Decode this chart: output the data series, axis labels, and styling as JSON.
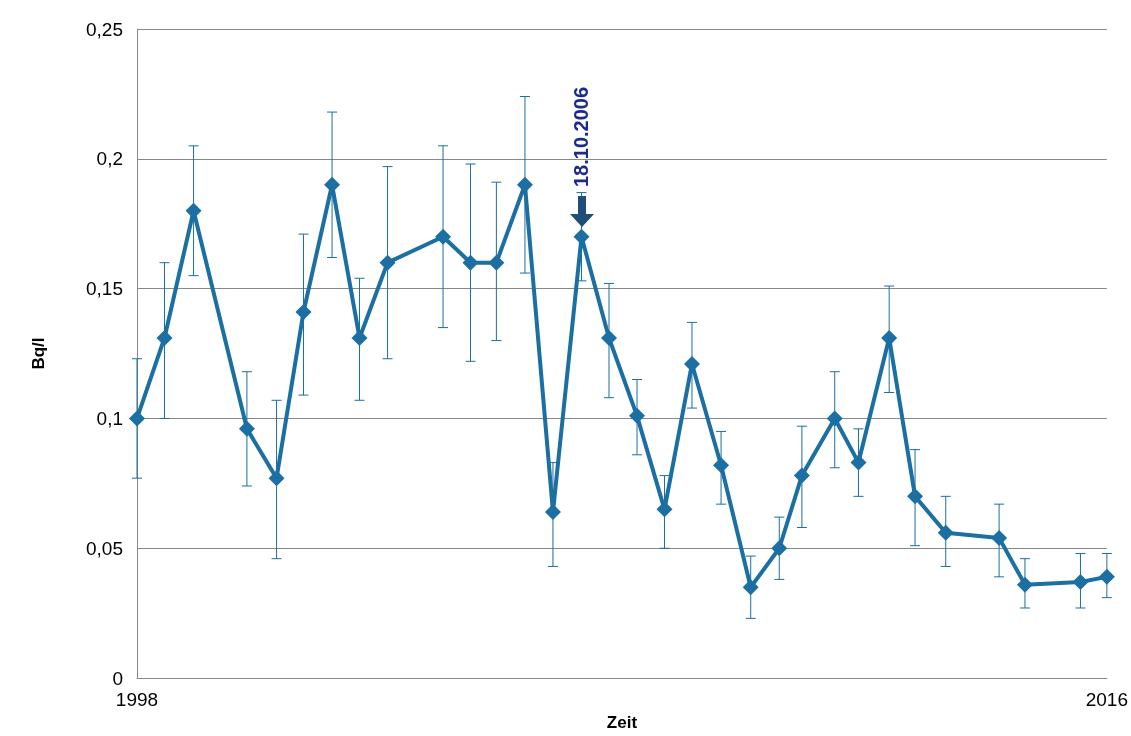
{
  "chart_data": {
    "type": "line",
    "xlabel": "Zeit",
    "ylabel": "Bq/l",
    "x": [
      1998.0,
      1998.51,
      1999.05,
      2000.04,
      2000.59,
      2001.09,
      2001.62,
      2002.13,
      2002.65,
      2003.68,
      2004.19,
      2004.67,
      2005.2,
      2005.72,
      2006.25,
      2006.76,
      2007.28,
      2007.79,
      2008.3,
      2008.84,
      2009.39,
      2009.92,
      2010.34,
      2010.95,
      2011.39,
      2011.96,
      2012.44,
      2013.01,
      2014.0,
      2014.48,
      2015.51,
      2016.0
    ],
    "series": [
      {
        "color": "#1b6fa2",
        "values": [
          0.1,
          0.131,
          0.18,
          0.096,
          0.077,
          0.141,
          0.19,
          0.131,
          0.16,
          0.17,
          0.16,
          0.16,
          0.19,
          0.064,
          0.17,
          0.131,
          0.101,
          0.065,
          0.121,
          0.082,
          0.035,
          0.05,
          0.078,
          0.1,
          0.083,
          0.131,
          0.07,
          0.056,
          0.054,
          0.036,
          0.037,
          0.039
        ],
        "errors": [
          [
            0.077,
            0.123
          ],
          [
            0.1,
            0.16
          ],
          [
            0.155,
            0.205
          ],
          [
            0.074,
            0.118
          ],
          [
            0.046,
            0.107
          ],
          [
            0.109,
            0.171
          ],
          [
            0.162,
            0.218
          ],
          [
            0.107,
            0.154
          ],
          [
            0.123,
            0.197
          ],
          [
            0.135,
            0.205
          ],
          [
            0.122,
            0.198
          ],
          [
            0.13,
            0.191
          ],
          [
            0.156,
            0.224
          ],
          [
            0.043,
            0.083
          ],
          [
            0.153,
            0.187
          ],
          [
            0.108,
            0.152
          ],
          [
            0.086,
            0.115
          ],
          [
            0.05,
            0.078
          ],
          [
            0.104,
            0.137
          ],
          [
            0.067,
            0.095
          ],
          [
            0.023,
            0.047
          ],
          [
            0.038,
            0.062
          ],
          [
            0.058,
            0.097
          ],
          [
            0.081,
            0.118
          ],
          [
            0.07,
            0.096
          ],
          [
            0.11,
            0.151
          ],
          [
            0.051,
            0.088
          ],
          [
            0.043,
            0.07
          ],
          [
            0.039,
            0.067
          ],
          [
            0.027,
            0.046
          ],
          [
            0.027,
            0.048
          ],
          [
            0.031,
            0.048
          ]
        ]
      }
    ],
    "xlim": [
      1998,
      2016
    ],
    "xticks": [
      1998,
      2016
    ],
    "ylim": [
      0,
      0.25
    ],
    "yticks": [
      {
        "value": 0,
        "label": "0"
      },
      {
        "value": 0.05,
        "label": "0,05"
      },
      {
        "value": 0.1,
        "label": "0,1"
      },
      {
        "value": 0.15,
        "label": "0,15"
      },
      {
        "value": 0.2,
        "label": "0,2"
      },
      {
        "value": 0.25,
        "label": "0,25"
      }
    ],
    "grid": "y",
    "marker": "diamond",
    "line_style": "solid",
    "annotations": [
      {
        "text": "18.10.2006",
        "x": 2006.25,
        "y": 0.17
      }
    ]
  }
}
